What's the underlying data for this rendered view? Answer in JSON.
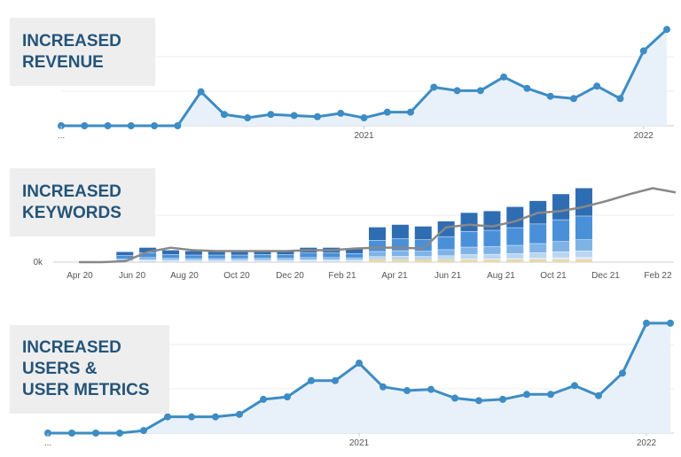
{
  "colors": {
    "line": "#3d8cc4",
    "fill": "#e8f1fa",
    "label_bg": "#eeeeee",
    "label_text": "#245479",
    "kw_line": "#888888",
    "bar_shades": [
      "#2f6db3",
      "#4a90d9",
      "#7fb3e6",
      "#b9d6f2",
      "#dde9f5",
      "#e8d9a8"
    ]
  },
  "panels": {
    "revenue": {
      "label_lines": [
        "INCREASED",
        "REVENUE"
      ]
    },
    "keywords": {
      "label_lines": [
        "INCREASED",
        "KEYWORDS"
      ],
      "y_tick": "0k"
    },
    "users": {
      "label_lines": [
        "INCREASED",
        "USERS &",
        "USER METRICS"
      ]
    }
  },
  "chart_data": [
    {
      "type": "line",
      "title": "INCREASED REVENUE",
      "x_ticks": [
        "...",
        "2021",
        "2022"
      ],
      "x_tick_positions": [
        0,
        13,
        25
      ],
      "values": [
        0,
        0,
        0,
        0,
        0,
        0,
        0.3,
        0.1,
        0.07,
        0.1,
        0.09,
        0.08,
        0.11,
        0.07,
        0.12,
        0.12,
        0.34,
        0.31,
        0.31,
        0.43,
        0.33,
        0.26,
        0.24,
        0.35,
        0.24,
        0.66,
        0.85
      ],
      "ylim": [
        0,
        1
      ],
      "grid": true
    },
    {
      "type": "bar",
      "title": "INCREASED KEYWORDS",
      "x_ticks": [
        "Apr 20",
        "Jun 20",
        "Aug 20",
        "Oct 20",
        "Dec 20",
        "Feb 21",
        "Apr 21",
        "Jun 21",
        "Aug 21",
        "Oct 21",
        "Dec 21",
        "Feb 22"
      ],
      "y_ticks": [
        "0k"
      ],
      "bars": [
        0.12,
        0.17,
        0.14,
        0.13,
        0.13,
        0.13,
        0.14,
        0.14,
        0.17,
        0.17,
        0.16,
        0.41,
        0.44,
        0.42,
        0.48,
        0.58,
        0.6,
        0.65,
        0.72,
        0.8,
        0.87
      ],
      "bar_start_index": 2,
      "line": [
        0,
        0,
        0.01,
        0.12,
        0.17,
        0.14,
        0.13,
        0.13,
        0.13,
        0.13,
        0.14,
        0.14,
        0.16,
        0.17,
        0.17,
        0.16,
        0.41,
        0.44,
        0.42,
        0.48,
        0.58,
        0.6,
        0.65,
        0.72,
        0.8,
        0.87,
        0.82
      ],
      "ylim": [
        0,
        1
      ],
      "grid": true
    },
    {
      "type": "line",
      "title": "INCREASED USERS & USER METRICS",
      "x_ticks": [
        "...",
        "2021",
        "2022"
      ],
      "x_tick_positions": [
        0,
        13,
        25
      ],
      "values": [
        0,
        0,
        0,
        0,
        0.02,
        0.13,
        0.13,
        0.13,
        0.15,
        0.27,
        0.29,
        0.42,
        0.42,
        0.56,
        0.37,
        0.34,
        0.35,
        0.28,
        0.26,
        0.27,
        0.31,
        0.31,
        0.38,
        0.3,
        0.48,
        0.88,
        0.88
      ],
      "ylim": [
        0,
        1
      ],
      "grid": true
    }
  ]
}
